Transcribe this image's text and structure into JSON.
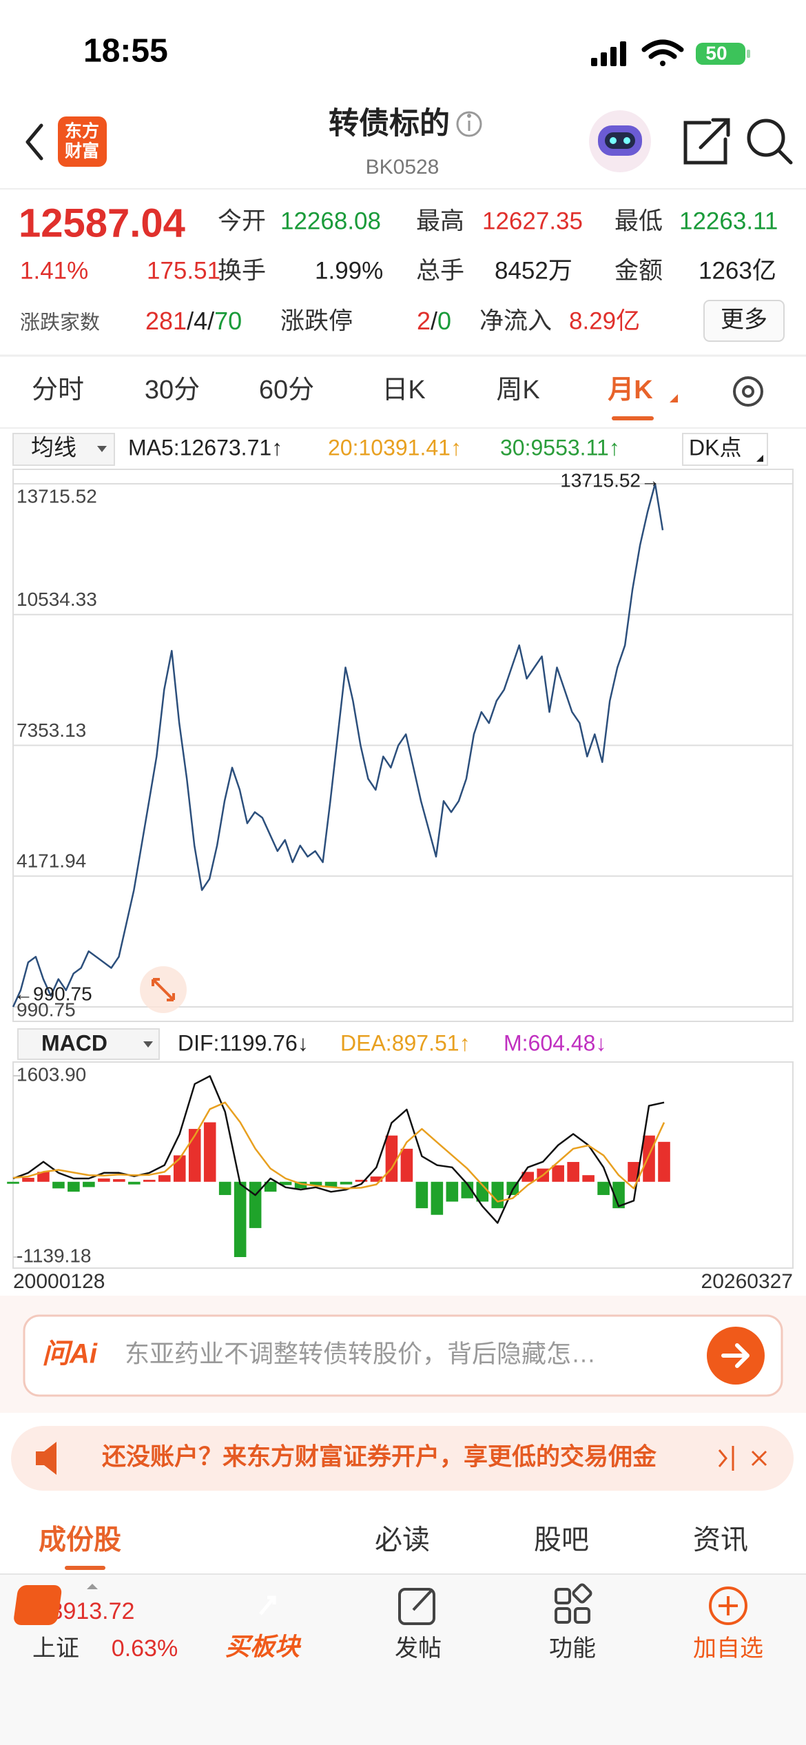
{
  "status_bar": {
    "time": "18:55",
    "battery": "50"
  },
  "header": {
    "logo": [
      "东方",
      "财富"
    ],
    "title": "转债标的",
    "code": "BK0528"
  },
  "quote": {
    "price": "12587.04",
    "change_pct": "1.41%",
    "change": "175.51",
    "fields": [
      {
        "label": "今开",
        "value": "12268.08"
      },
      {
        "label": "最高",
        "value": "12627.35"
      },
      {
        "label": "最低",
        "value": "12263.11"
      },
      {
        "label": "换手",
        "value": "1.99%"
      },
      {
        "label": "总手",
        "value": "8452万"
      },
      {
        "label": "金额",
        "value": "1263亿"
      }
    ],
    "breadth": {
      "label": "涨跌家数",
      "up": "281",
      "flat": "4",
      "down": "70",
      "separator": "/"
    },
    "limit": {
      "label": "涨跌停",
      "up": "2",
      "down": "0"
    },
    "net_inflow": {
      "label": "净流入",
      "value": "8.29亿"
    },
    "more": "更多"
  },
  "period_tabs": [
    "分时",
    "30分",
    "60分",
    "日K",
    "周K",
    "月K"
  ],
  "ma_legend": {
    "selector": "均线",
    "ma5": "MA5:12673.71↑",
    "ma20": "20:10391.41↑",
    "ma30": "30:9553.11↑",
    "dk": "DK点"
  },
  "macd_legend": {
    "selector": "MACD",
    "dif": "DIF:1199.76↓",
    "dea": "DEA:897.51↑",
    "m": "M:604.48↓"
  },
  "chart_data": [
    {
      "type": "line",
      "color": "#2c4f7c",
      "grid": true,
      "ylim": [
        990.75,
        13715.52
      ],
      "yticks": [
        990.75,
        4171.94,
        7353.13,
        10534.33,
        13715.52
      ],
      "annotations": [
        "13715.52→",
        "←990.75"
      ],
      "values": [
        990.75,
        1397,
        2074,
        2209,
        1667,
        1261,
        1667,
        1397,
        1803,
        1938,
        2344,
        2209,
        2074,
        1938,
        2209,
        3021,
        3833,
        4916,
        5999,
        7082,
        8706,
        9653,
        7894,
        6540,
        4916,
        3833,
        4104,
        4916,
        5999,
        6811,
        6270,
        5457,
        5728,
        5593,
        5187,
        4781,
        5052,
        4510,
        4916,
        4645,
        4781,
        4510,
        5999,
        7623,
        9247,
        8435,
        7352,
        6540,
        6270,
        7082,
        6811,
        7352,
        7623,
        6811,
        5999,
        5322,
        4645,
        5999,
        5728,
        5999,
        6540,
        7623,
        8165,
        7894,
        8435,
        8706,
        9247,
        9788,
        8976,
        9247,
        9518,
        8165,
        9247,
        8706,
        8165,
        7894,
        7082,
        7623,
        6946,
        8435,
        9247,
        9788,
        11142,
        12224,
        13036,
        13715.52,
        12587.04
      ]
    },
    {
      "type": "macd",
      "ylim": [
        -1139.18,
        1603.9
      ],
      "yticks": [
        {
          "value": 1603.9,
          "label": "1603.90"
        },
        -1139.18
      ],
      "x_labels": [
        "20000128",
        "20260327"
      ],
      "bars": {
        "up_color": "#e8302c",
        "down_color": "#1fa32a",
        "values": [
          -30,
          60,
          150,
          -100,
          -150,
          -80,
          50,
          40,
          -40,
          30,
          100,
          400,
          800,
          900,
          -200,
          -1139.18,
          -700,
          -150,
          -50,
          -100,
          -60,
          -80,
          -40,
          30,
          80,
          700,
          500,
          -400,
          -500,
          -300,
          -250,
          -300,
          -400,
          -200,
          150,
          200,
          250,
          300,
          100,
          -200,
          -400,
          300,
          700,
          604.48
        ]
      },
      "lines": [
        {
          "color": "#111111",
          "values": [
            50,
            135,
            303,
            135,
            50,
            50,
            135,
            135,
            84,
            135,
            252,
            724,
            1481,
            1600,
            1060,
            -34,
            -202,
            50,
            -84,
            -118,
            -84,
            -151,
            -118,
            -34,
            219,
            892,
            1094,
            387,
            252,
            219,
            -34,
            -370,
            -623,
            -118,
            219,
            303,
            555,
            724,
            555,
            219,
            -370,
            -286,
            1150,
            1199.76
          ]
        },
        {
          "color": "#e8a020",
          "values": [
            60,
            80,
            150,
            180,
            140,
            100,
            95,
            110,
            100,
            105,
            150,
            350,
            700,
            1100,
            1200,
            900,
            500,
            200,
            50,
            -30,
            -60,
            -80,
            -100,
            -90,
            -40,
            200,
            600,
            800,
            600,
            400,
            200,
            -50,
            -300,
            -250,
            -50,
            100,
            300,
            500,
            550,
            400,
            100,
            -100,
            400,
            897.51
          ]
        }
      ]
    }
  ],
  "ask_ai": {
    "brand": "问Ai",
    "placeholder": "东亚药业不调整转债转股价，背后隐藏怎…"
  },
  "promo": {
    "text": "还没账户？来东方财富证券开户，享更低的交易佣金"
  },
  "content_tabs": [
    "成份股",
    "必读",
    "股吧",
    "资讯"
  ],
  "bottom_bar": {
    "index_value": "3913.72",
    "index_name": "上证",
    "index_change": "0.63%",
    "items": [
      "买板块",
      "发帖",
      "功能",
      "加自选"
    ]
  }
}
